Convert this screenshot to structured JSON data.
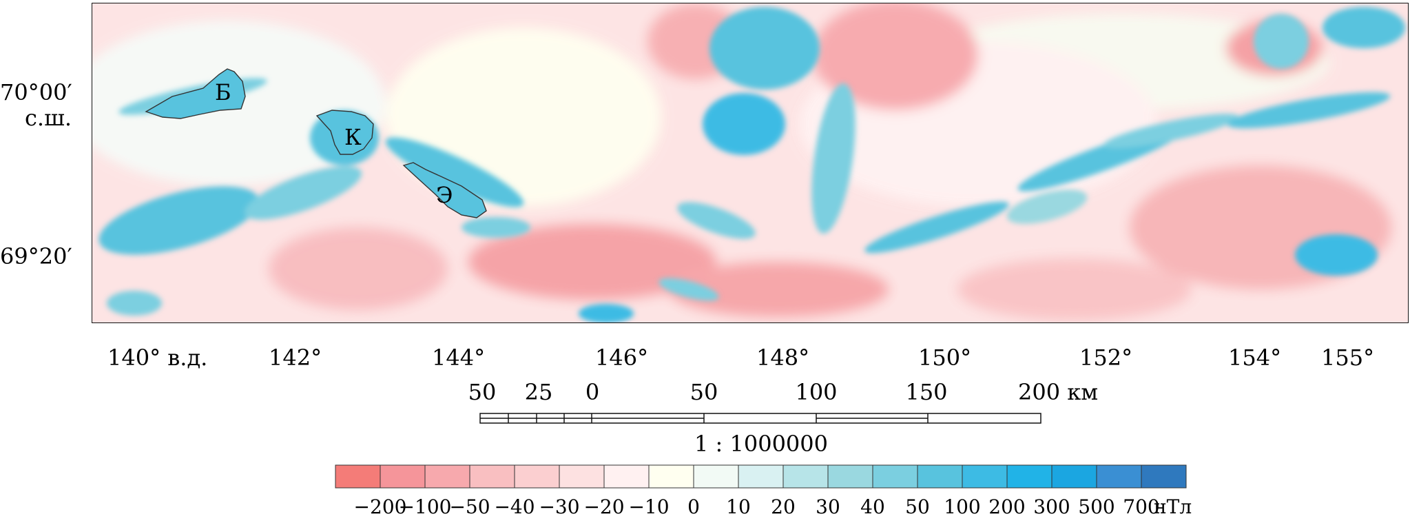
{
  "map": {
    "latitude_labels": [
      "70°00′",
      "с.ш.",
      "69°20′"
    ],
    "longitude_labels": [
      "140° в.д.",
      "142°",
      "144°",
      "146°",
      "148°",
      "150°",
      "152°",
      "154°",
      "155°"
    ],
    "island_labels": [
      "Б",
      "К",
      "Э"
    ]
  },
  "scale_bar": {
    "tick_labels": [
      "50",
      "25",
      "0",
      "50",
      "100",
      "150",
      "200 км"
    ],
    "ratio": "1 : 1000000"
  },
  "legend": {
    "labels": [
      "−200",
      "−100",
      "−50",
      "−40",
      "−30",
      "−20",
      "−10",
      "0",
      "10",
      "20",
      "30",
      "40",
      "50",
      "100",
      "200",
      "300",
      "500",
      "700",
      "нТл"
    ],
    "colors": [
      "#f47c78",
      "#f5959a",
      "#f7a9ad",
      "#f9bfc1",
      "#fbcfd0",
      "#fde1e1",
      "#fff1f1",
      "#fffff0",
      "#f2faf5",
      "#d9f1f2",
      "#b7e4e8",
      "#9ad8e0",
      "#7bcfe0",
      "#58c3de",
      "#3dbbe4",
      "#21b3e7",
      "#1ba6e1",
      "#3a8fd3",
      "#2f79be"
    ]
  }
}
